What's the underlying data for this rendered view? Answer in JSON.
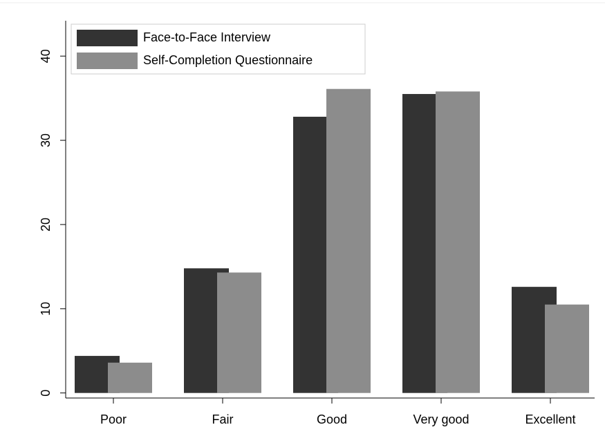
{
  "chart_data": {
    "type": "bar",
    "categories": [
      "Poor",
      "Fair",
      "Good",
      "Very good",
      "Excellent"
    ],
    "series": [
      {
        "name": "Face-to-Face Interview",
        "color": "#333333",
        "values": [
          4.4,
          14.8,
          32.8,
          35.5,
          12.6
        ]
      },
      {
        "name": "Self-Completion Questionnaire",
        "color": "#8c8c8c",
        "values": [
          3.6,
          14.3,
          36.1,
          35.8,
          10.5
        ]
      }
    ],
    "ylim": [
      -0.6,
      44.2
    ],
    "yticks": [
      0,
      10,
      20,
      30,
      40
    ],
    "grid": false,
    "legend": "top-left"
  }
}
